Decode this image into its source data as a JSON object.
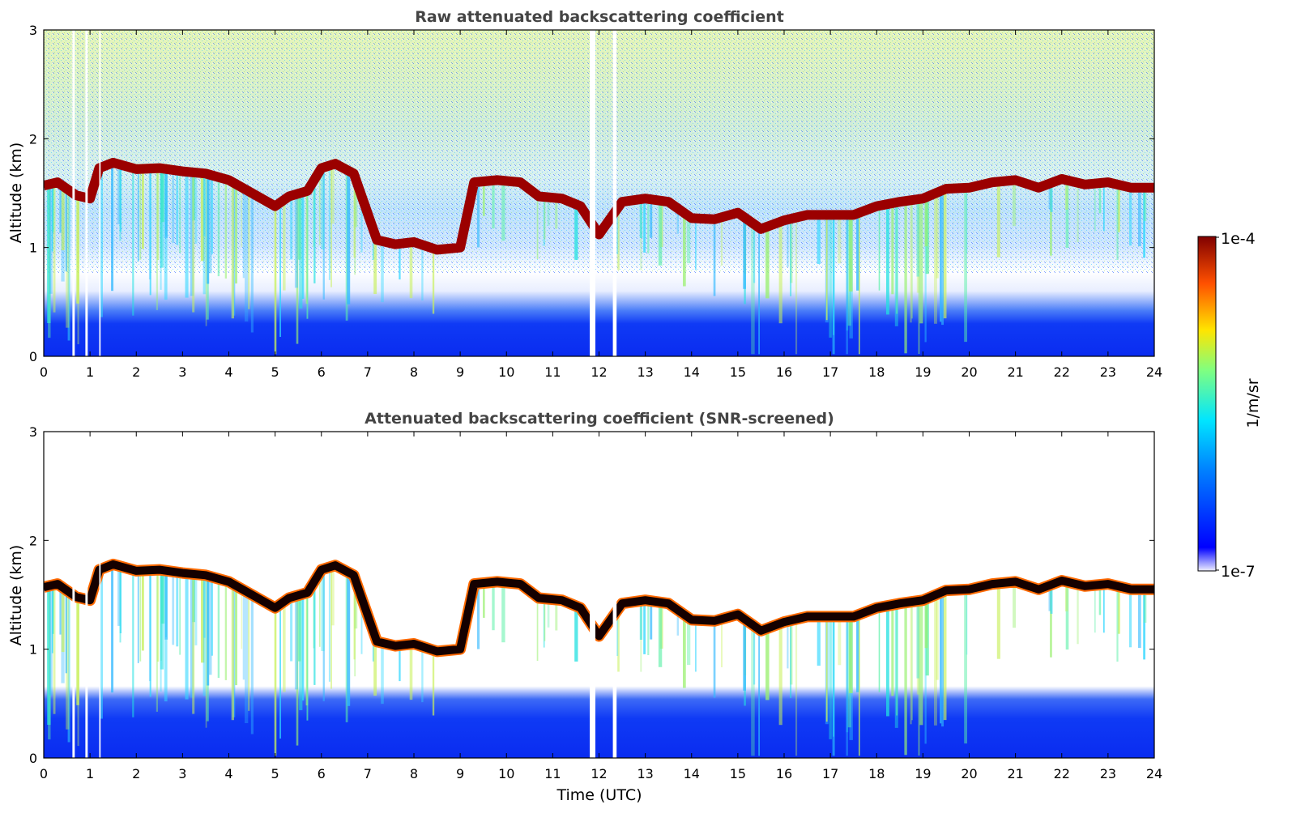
{
  "chart_data": [
    {
      "type": "heatmap",
      "title": "Raw attenuated backscattering coefficient",
      "ylabel": "Altitude (km)",
      "xlabel": "",
      "xlim": [
        0,
        24
      ],
      "ylim": [
        0,
        3
      ],
      "x_ticks": [
        "0",
        "1",
        "2",
        "3",
        "4",
        "5",
        "6",
        "7",
        "8",
        "9",
        "10",
        "11",
        "12",
        "13",
        "14",
        "15",
        "16",
        "17",
        "18",
        "19",
        "20",
        "21",
        "22",
        "23",
        "24"
      ],
      "y_ticks": [
        "0",
        "1",
        "2",
        "3"
      ],
      "scale": "log",
      "cloud_top_km": {
        "x": [
          0,
          0.3,
          0.7,
          1,
          1.2,
          1.5,
          2,
          2.5,
          3,
          3.5,
          4,
          4.5,
          5,
          5.3,
          5.7,
          6,
          6.3,
          6.7,
          7.2,
          7.6,
          8,
          8.5,
          9,
          9.3,
          9.8,
          10.3,
          10.7,
          11.2,
          11.6,
          12,
          12.5,
          13,
          13.5,
          14,
          14.5,
          15,
          15.5,
          16,
          16.5,
          17,
          17.5,
          18,
          18.5,
          19,
          19.5,
          20,
          20.5,
          21,
          21.5,
          22,
          22.5,
          23,
          23.5,
          24
        ],
        "y": [
          1.57,
          1.6,
          1.48,
          1.45,
          1.73,
          1.78,
          1.72,
          1.73,
          1.7,
          1.68,
          1.62,
          1.5,
          1.38,
          1.47,
          1.52,
          1.73,
          1.77,
          1.68,
          1.07,
          1.03,
          1.05,
          0.98,
          1.0,
          1.6,
          1.62,
          1.6,
          1.47,
          1.45,
          1.38,
          1.12,
          1.42,
          1.45,
          1.42,
          1.27,
          1.26,
          1.32,
          1.17,
          1.25,
          1.3,
          1.3,
          1.3,
          1.38,
          1.42,
          1.45,
          1.54,
          1.55,
          1.6,
          1.62,
          1.55,
          1.63,
          1.58,
          1.6,
          1.55,
          1.55
        ]
      }
    },
    {
      "type": "heatmap",
      "title": "Attenuated backscattering coefficient (SNR-screened)",
      "ylabel": "Altitude (km)",
      "xlabel": "Time (UTC)",
      "xlim": [
        0,
        24
      ],
      "ylim": [
        0,
        3
      ],
      "x_ticks": [
        "0",
        "1",
        "2",
        "3",
        "4",
        "5",
        "6",
        "7",
        "8",
        "9",
        "10",
        "11",
        "12",
        "13",
        "14",
        "15",
        "16",
        "17",
        "18",
        "19",
        "20",
        "21",
        "22",
        "23",
        "24"
      ],
      "y_ticks": [
        "0",
        "1",
        "2",
        "3"
      ],
      "scale": "log"
    }
  ],
  "colorbar": {
    "label": "1/m/sr",
    "max_label": "1e-4",
    "min_label": "1e-7",
    "colormap": "jet",
    "colors": [
      "#eeeeff",
      "#0000ff",
      "#0080ff",
      "#00e5ff",
      "#80ff80",
      "#ffe500",
      "#ff5000",
      "#800000"
    ]
  }
}
